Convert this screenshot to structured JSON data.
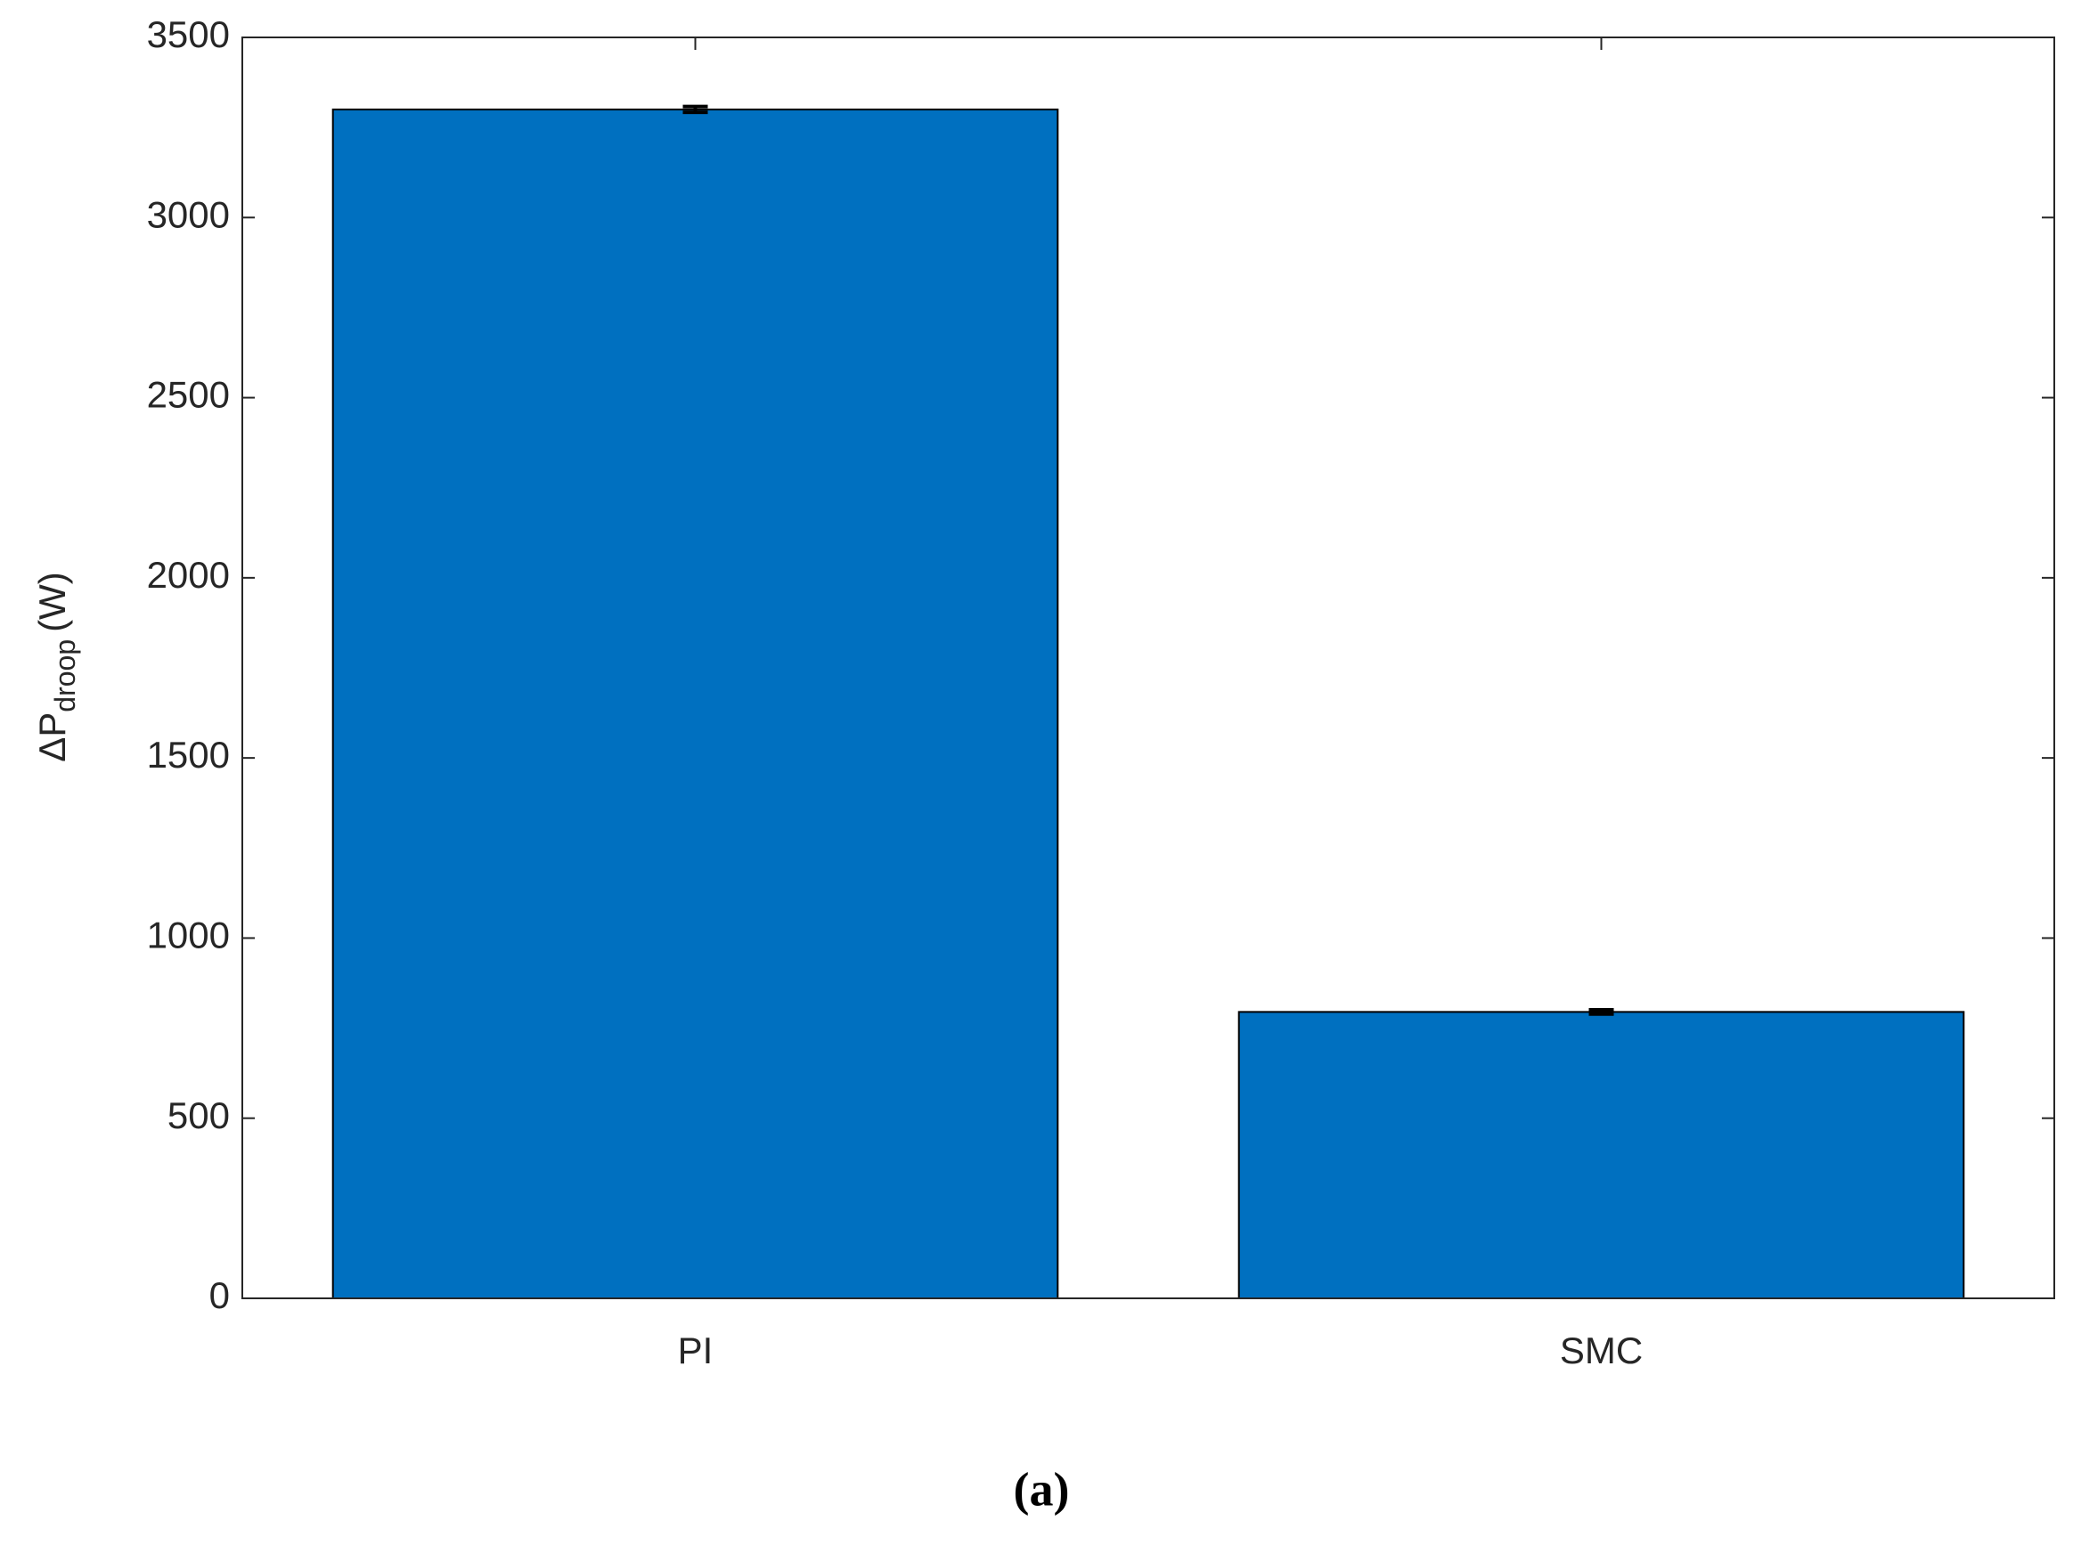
{
  "chart_data": {
    "type": "bar",
    "categories": [
      "PI",
      "SMC"
    ],
    "values": [
      3300,
      795
    ],
    "errors": [
      8,
      6
    ],
    "color": "#0070c0",
    "ylabel": {
      "main": "ΔP",
      "subscript": "droop",
      "unit": "(W)"
    },
    "ylim": [
      0,
      3500
    ],
    "yticks": [
      0,
      500,
      1000,
      1500,
      2000,
      2500,
      3000,
      3500
    ],
    "grid": false,
    "caption": "(a)"
  }
}
